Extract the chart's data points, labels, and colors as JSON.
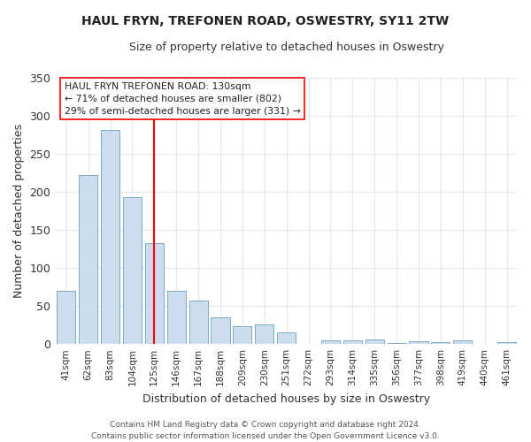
{
  "title": "HAUL FRYN, TREFONEN ROAD, OSWESTRY, SY11 2TW",
  "subtitle": "Size of property relative to detached houses in Oswestry",
  "xlabel": "Distribution of detached houses by size in Oswestry",
  "ylabel": "Number of detached properties",
  "categories": [
    "41sqm",
    "62sqm",
    "83sqm",
    "104sqm",
    "125sqm",
    "146sqm",
    "167sqm",
    "188sqm",
    "209sqm",
    "230sqm",
    "251sqm",
    "272sqm",
    "293sqm",
    "314sqm",
    "335sqm",
    "356sqm",
    "377sqm",
    "398sqm",
    "419sqm",
    "440sqm",
    "461sqm"
  ],
  "values": [
    70,
    222,
    281,
    193,
    133,
    70,
    57,
    35,
    23,
    26,
    15,
    0,
    5,
    5,
    6,
    1,
    4,
    3,
    5,
    0,
    3
  ],
  "bar_color": "#ccdded",
  "bar_edge_color": "#7aaac8",
  "red_line_index": 4.5,
  "ylim": [
    0,
    350
  ],
  "yticks": [
    0,
    50,
    100,
    150,
    200,
    250,
    300,
    350
  ],
  "annotation_text": "HAUL FRYN TREFONEN ROAD: 130sqm\n← 71% of detached houses are smaller (802)\n29% of semi-detached houses are larger (331) →",
  "footer": "Contains HM Land Registry data © Crown copyright and database right 2024.\nContains public sector information licensed under the Open Government Licence v3.0.",
  "bg_color": "#ffffff",
  "plot_bg_color": "#ffffff",
  "grid_color": "#e0e8f0",
  "title_fontsize": 10,
  "subtitle_fontsize": 9
}
